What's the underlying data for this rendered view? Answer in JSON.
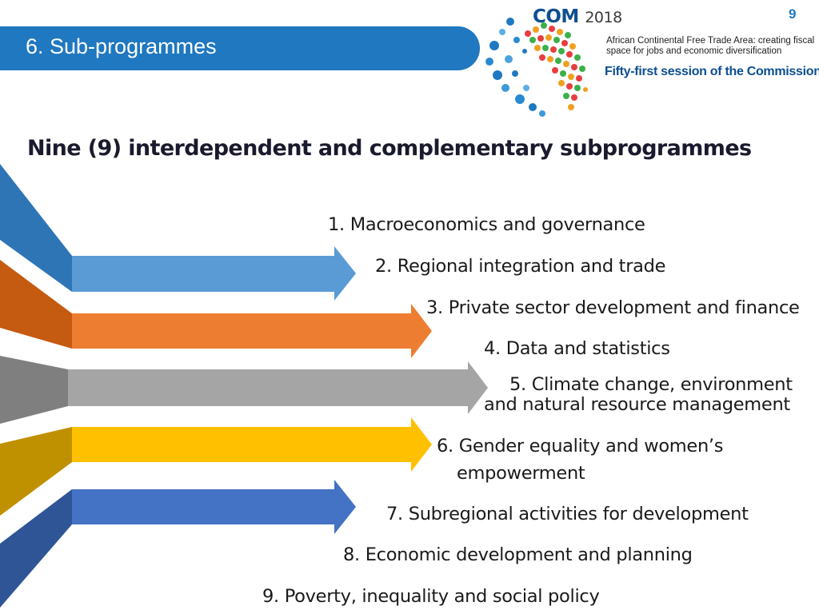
{
  "page_number": "9",
  "header": {
    "title": "6. Sub-programmes"
  },
  "logo": {
    "brand": "COM",
    "year": "2018",
    "theme": "African Continental Free Trade Area: creating fiscal space for jobs and economic diversification",
    "session": "Fifty-first session of the Commission"
  },
  "subtitle": "Nine (9) interdependent and complementary subprogrammes",
  "items": [
    {
      "text": "1. Macroeconomics and governance"
    },
    {
      "text": "2.  Regional integration and trade"
    },
    {
      "text": "3. Private sector development and finance"
    },
    {
      "text": "4. Data and statistics"
    },
    {
      "line1": "5. Climate change, environment",
      "line2": "and natural resource management"
    },
    {
      "line1": "6. Gender equality and women’s",
      "line2": "empowerment"
    },
    {
      "text": "7. Subregional activities for development"
    },
    {
      "text": "8. Economic development and planning"
    },
    {
      "text": "9. Poverty, inequality and social policy"
    }
  ],
  "colors": {
    "header": "#1f78c0",
    "arrow_blue": "#5b9bd5",
    "arrow_orange": "#ed7d31",
    "arrow_gray": "#a5a5a5",
    "arrow_gold": "#ffc000",
    "arrow_darkblue": "#4472c4"
  }
}
